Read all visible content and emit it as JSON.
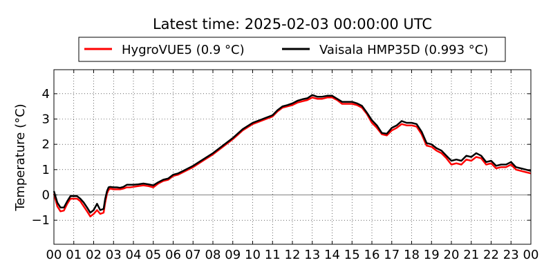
{
  "chart_data": {
    "type": "line",
    "title": "Latest time: 2025-02-03 00:00:00 UTC",
    "xlabel": "",
    "ylabel": "Temperature (°C)",
    "xlim": [
      0,
      24
    ],
    "ylim": [
      -1.95,
      4.95
    ],
    "grid": true,
    "legend_position": "top",
    "x_tick_labels": [
      "00",
      "01",
      "02",
      "03",
      "04",
      "05",
      "06",
      "07",
      "08",
      "09",
      "10",
      "11",
      "12",
      "13",
      "14",
      "15",
      "16",
      "17",
      "18",
      "19",
      "20",
      "21",
      "22",
      "23",
      "00"
    ],
    "y_ticks": [
      -1,
      0,
      1,
      2,
      3,
      4
    ],
    "y_tick_labels": [
      "−1",
      "0",
      "1",
      "2",
      "3",
      "4"
    ],
    "series": [
      {
        "name": "HygroVUE5 (0.9 °C)",
        "color": "#ff0000",
        "x": [
          0,
          0.17,
          0.33,
          0.5,
          0.67,
          0.83,
          1.0,
          1.17,
          1.33,
          1.5,
          1.67,
          1.83,
          2.0,
          2.17,
          2.33,
          2.5,
          2.58,
          2.67,
          2.75,
          2.83,
          3.0,
          3.17,
          3.33,
          3.5,
          3.67,
          3.83,
          4.0,
          4.25,
          4.5,
          4.75,
          5.0,
          5.25,
          5.5,
          5.75,
          6.0,
          6.25,
          6.5,
          7.0,
          7.5,
          8.0,
          8.5,
          9.0,
          9.5,
          10.0,
          10.5,
          11.0,
          11.25,
          11.5,
          11.75,
          12.0,
          12.25,
          12.5,
          12.75,
          13.0,
          13.25,
          13.5,
          13.75,
          14.0,
          14.25,
          14.5,
          14.75,
          15.0,
          15.25,
          15.5,
          15.75,
          16.0,
          16.25,
          16.5,
          16.75,
          17.0,
          17.25,
          17.5,
          17.75,
          18.0,
          18.25,
          18.5,
          18.75,
          19.0,
          19.25,
          19.5,
          19.75,
          20.0,
          20.25,
          20.5,
          20.75,
          21.0,
          21.25,
          21.5,
          21.75,
          22.0,
          22.25,
          22.5,
          22.75,
          23.0,
          23.25,
          23.5,
          23.75,
          24.0
        ],
        "values": [
          0.05,
          -0.45,
          -0.65,
          -0.62,
          -0.35,
          -0.15,
          -0.15,
          -0.15,
          -0.25,
          -0.45,
          -0.65,
          -0.85,
          -0.75,
          -0.6,
          -0.75,
          -0.7,
          -0.3,
          0.05,
          0.2,
          0.25,
          0.22,
          0.22,
          0.22,
          0.25,
          0.3,
          0.3,
          0.32,
          0.35,
          0.38,
          0.35,
          0.3,
          0.45,
          0.55,
          0.6,
          0.75,
          0.8,
          0.9,
          1.1,
          1.35,
          1.6,
          1.9,
          2.2,
          2.55,
          2.8,
          2.95,
          3.1,
          3.3,
          3.45,
          3.5,
          3.55,
          3.65,
          3.7,
          3.75,
          3.85,
          3.8,
          3.8,
          3.85,
          3.85,
          3.75,
          3.6,
          3.6,
          3.6,
          3.55,
          3.45,
          3.2,
          2.85,
          2.65,
          2.4,
          2.35,
          2.55,
          2.65,
          2.8,
          2.75,
          2.75,
          2.7,
          2.4,
          1.95,
          1.9,
          1.75,
          1.65,
          1.45,
          1.2,
          1.25,
          1.2,
          1.4,
          1.35,
          1.5,
          1.45,
          1.2,
          1.25,
          1.05,
          1.1,
          1.1,
          1.2,
          1.0,
          0.95,
          0.9,
          0.85
        ]
      },
      {
        "name": "Vaisala HMP35D (0.993 °C)",
        "color": "#000000",
        "x": [
          0,
          0.17,
          0.33,
          0.5,
          0.67,
          0.83,
          1.0,
          1.17,
          1.33,
          1.5,
          1.67,
          1.83,
          2.0,
          2.17,
          2.33,
          2.5,
          2.58,
          2.67,
          2.75,
          2.83,
          3.0,
          3.17,
          3.33,
          3.5,
          3.67,
          3.83,
          4.0,
          4.25,
          4.5,
          4.75,
          5.0,
          5.25,
          5.5,
          5.75,
          6.0,
          6.25,
          6.5,
          7.0,
          7.5,
          8.0,
          8.5,
          9.0,
          9.5,
          10.0,
          10.5,
          11.0,
          11.25,
          11.5,
          11.75,
          12.0,
          12.25,
          12.5,
          12.75,
          13.0,
          13.25,
          13.5,
          13.75,
          14.0,
          14.25,
          14.5,
          14.75,
          15.0,
          15.25,
          15.5,
          15.75,
          16.0,
          16.25,
          16.5,
          16.75,
          17.0,
          17.25,
          17.5,
          17.75,
          18.0,
          18.25,
          18.5,
          18.75,
          19.0,
          19.25,
          19.5,
          19.75,
          20.0,
          20.25,
          20.5,
          20.75,
          21.0,
          21.25,
          21.5,
          21.75,
          22.0,
          22.25,
          22.5,
          22.75,
          23.0,
          23.25,
          23.5,
          23.75,
          24.0
        ],
        "values": [
          0.15,
          -0.3,
          -0.5,
          -0.5,
          -0.25,
          -0.05,
          -0.05,
          -0.05,
          -0.15,
          -0.3,
          -0.5,
          -0.7,
          -0.6,
          -0.35,
          -0.6,
          -0.55,
          -0.15,
          0.15,
          0.3,
          0.32,
          0.3,
          0.3,
          0.28,
          0.32,
          0.4,
          0.4,
          0.4,
          0.42,
          0.45,
          0.42,
          0.38,
          0.5,
          0.6,
          0.65,
          0.8,
          0.85,
          0.95,
          1.15,
          1.4,
          1.65,
          1.95,
          2.25,
          2.6,
          2.85,
          3.0,
          3.15,
          3.35,
          3.5,
          3.55,
          3.62,
          3.72,
          3.78,
          3.82,
          3.95,
          3.88,
          3.88,
          3.92,
          3.92,
          3.8,
          3.68,
          3.68,
          3.68,
          3.62,
          3.52,
          3.25,
          2.95,
          2.75,
          2.45,
          2.42,
          2.65,
          2.75,
          2.92,
          2.85,
          2.85,
          2.8,
          2.5,
          2.05,
          2.0,
          1.85,
          1.75,
          1.55,
          1.35,
          1.4,
          1.35,
          1.55,
          1.5,
          1.65,
          1.55,
          1.3,
          1.35,
          1.15,
          1.2,
          1.2,
          1.3,
          1.1,
          1.05,
          1.0,
          0.95
        ]
      }
    ]
  }
}
